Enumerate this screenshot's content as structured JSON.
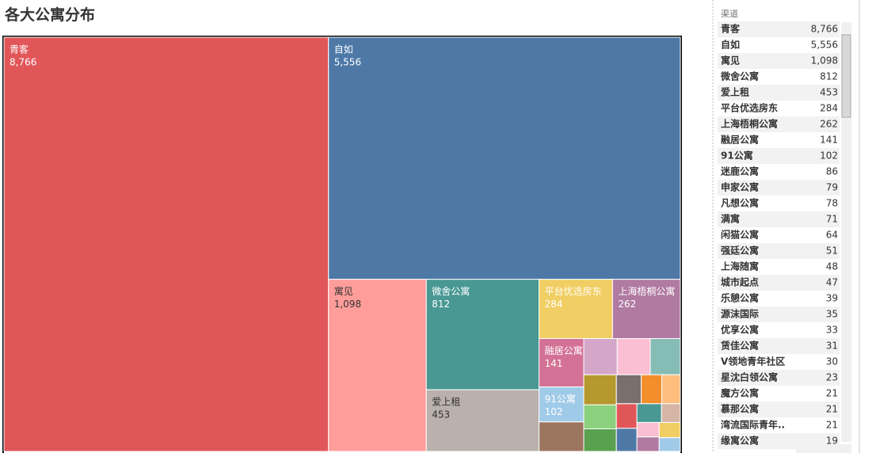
{
  "chart_data": {
    "type": "treemap",
    "title": "各大公寓分布",
    "legend_title": "渠道",
    "categories": [
      "青客",
      "自如",
      "寓见",
      "微舍公寓",
      "爱上租",
      "平台优选房东",
      "上海梧桐公寓",
      "融居公寓",
      "91公寓",
      "迷鹿公寓",
      "申家公寓",
      "凡想公寓",
      "满寓",
      "闲猫公寓",
      "强廷公寓",
      "上海随寓",
      "城市起点",
      "乐憩公寓",
      "源沫国际",
      "优享公寓",
      "赁佳公寓",
      "V领地青年社区",
      "星沈白领公寓",
      "魔方公寓",
      "慕那公寓",
      "湾流国际青年..",
      "缘寓公寓"
    ],
    "values": [
      8766,
      5556,
      1098,
      812,
      453,
      284,
      262,
      141,
      102,
      86,
      79,
      78,
      71,
      64,
      51,
      48,
      47,
      39,
      35,
      33,
      31,
      30,
      23,
      21,
      21,
      21,
      19
    ],
    "value_labels": [
      "8,766",
      "5,556",
      "1,098",
      "812",
      "453",
      "284",
      "262",
      "141",
      "102",
      "86",
      "79",
      "78",
      "71",
      "64",
      "51",
      "48",
      "47",
      "39",
      "35",
      "33",
      "31",
      "30",
      "23",
      "21",
      "21",
      "21",
      "19"
    ],
    "colors": [
      "#e15759",
      "#4e79a7",
      "#ff9d9a",
      "#499894",
      "#bab0ac",
      "#f1ce63",
      "#b07aa1",
      "#d37295",
      "#a0cbe8",
      "#9d7660",
      "#d4a6c8",
      "#fabfd2",
      "#86bcb6",
      "#b6992d",
      "#8cd17d",
      "#59a14f",
      "#79706e",
      "#f28e2b",
      "#ffbe7d",
      "#e15759",
      "#4e79a7",
      "#499894",
      "#d7b5a6",
      "#fabfd2",
      "#b07aa1",
      "#f1ce63",
      "#a0cbe8"
    ]
  }
}
